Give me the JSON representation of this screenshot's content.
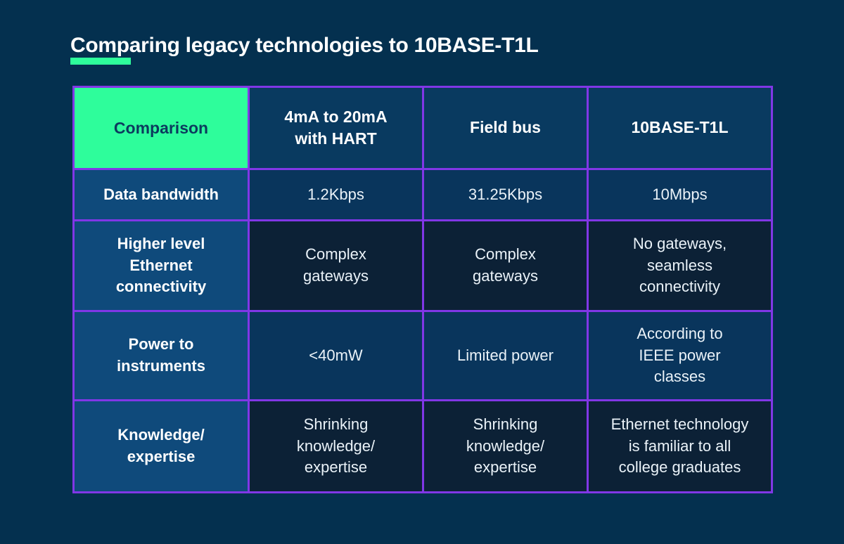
{
  "page": {
    "title": "Comparing legacy technologies to 10BASE-T1L",
    "accent_color": "#2EFD9B",
    "background_color": "#04304F",
    "table_border_color": "#8137E6",
    "highlight_cell_color": "#2EFD9B"
  },
  "table": {
    "headers": [
      "Comparison",
      "4mA to 20mA\nwith HART",
      "Field bus",
      "10BASE-T1L"
    ],
    "rows": [
      {
        "label": "Data bandwidth",
        "values": [
          "1.2Kbps",
          "31.25Kbps",
          "10Mbps"
        ]
      },
      {
        "label": "Higher level\nEthernet\nconnectivity",
        "values": [
          "Complex\ngateways",
          "Complex\ngateways",
          "No gateways,\nseamless\nconnectivity"
        ]
      },
      {
        "label": "Power to\ninstruments",
        "values": [
          "<40mW",
          "Limited power",
          "According to\nIEEE power\nclasses"
        ]
      },
      {
        "label": "Knowledge/\nexpertise",
        "values": [
          "Shrinking\nknowledge/\nexpertise",
          "Shrinking\nknowledge/\nexpertise",
          "Ethernet technology\nis familiar to all\ncollege graduates"
        ]
      }
    ]
  },
  "chart_data": {
    "type": "table",
    "title": "Comparing legacy technologies to 10BASE-T1L",
    "columns": [
      "Comparison",
      "4mA to 20mA with HART",
      "Field bus",
      "10BASE-T1L"
    ],
    "rows": [
      [
        "Data bandwidth",
        "1.2Kbps",
        "31.25Kbps",
        "10Mbps"
      ],
      [
        "Higher level Ethernet connectivity",
        "Complex gateways",
        "Complex gateways",
        "No gateways, seamless connectivity"
      ],
      [
        "Power to instruments",
        "<40mW",
        "Limited power",
        "According to IEEE power classes"
      ],
      [
        "Knowledge/expertise",
        "Shrinking knowledge/expertise",
        "Shrinking knowledge/expertise",
        "Ethernet technology is familiar to all college graduates"
      ]
    ]
  }
}
